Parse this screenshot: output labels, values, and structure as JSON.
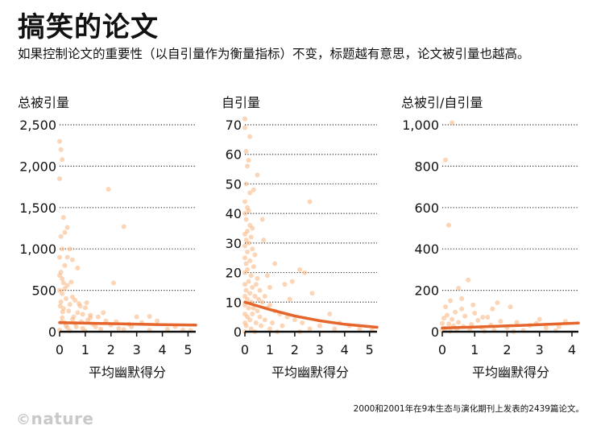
{
  "header": {
    "title": "搞笑的论文",
    "subtitle": "如果控制论文的重要性（以自引量作为衡量指标）不变，标题越有意思，论文被引量也越高。"
  },
  "footer": {
    "note": "2000和2001年在9本生态与演化期刊上发表的2439篇论文。",
    "logo_symbol": "©",
    "logo_text": "nature"
  },
  "colors": {
    "trend": "#e4662c",
    "points": "#f7b27a",
    "axis": "#111111",
    "grid": "#333333"
  },
  "chart_data": [
    {
      "type": "scatter",
      "title": "总被引量",
      "xlabel": "平均幽默得分",
      "xlim": [
        0,
        5.3
      ],
      "ylim": [
        0,
        2500
      ],
      "xticks": [
        0,
        1,
        2,
        3,
        4,
        5
      ],
      "yticks": [
        0,
        500,
        1000,
        1500,
        2000,
        2500
      ],
      "ytick_labels": [
        "0",
        "500",
        "1,000",
        "1,500",
        "2,000",
        "2,500"
      ],
      "trend": [
        [
          0,
          110
        ],
        [
          1,
          103
        ],
        [
          2,
          97
        ],
        [
          3,
          91
        ],
        [
          4,
          86
        ],
        [
          5.3,
          80
        ]
      ],
      "points": [
        [
          0,
          2300
        ],
        [
          0.05,
          2200
        ],
        [
          0.1,
          2080
        ],
        [
          0,
          1850
        ],
        [
          0.15,
          1380
        ],
        [
          0.3,
          1260
        ],
        [
          0.05,
          1150
        ],
        [
          0.2,
          1200
        ],
        [
          0.4,
          1000
        ],
        [
          0.1,
          1000
        ],
        [
          0,
          900
        ],
        [
          0.5,
          870
        ],
        [
          0.7,
          770
        ],
        [
          0.05,
          720
        ],
        [
          0,
          680
        ],
        [
          0.1,
          640
        ],
        [
          0.15,
          590
        ],
        [
          0.3,
          560
        ],
        [
          0.45,
          600
        ],
        [
          0.2,
          520
        ],
        [
          0,
          500
        ],
        [
          0.1,
          460
        ],
        [
          0.5,
          420
        ],
        [
          0.25,
          400
        ],
        [
          0.6,
          380
        ],
        [
          0.05,
          360
        ],
        [
          0.4,
          330
        ],
        [
          0.8,
          310
        ],
        [
          1.0,
          290
        ],
        [
          0.15,
          280
        ],
        [
          0.35,
          250
        ],
        [
          0.7,
          230
        ],
        [
          0.9,
          210
        ],
        [
          1.2,
          200
        ],
        [
          1.5,
          180
        ],
        [
          0.1,
          170
        ],
        [
          0.5,
          150
        ],
        [
          1.1,
          140
        ],
        [
          1.8,
          130
        ],
        [
          2.2,
          120
        ],
        [
          0.2,
          110
        ],
        [
          0.6,
          100
        ],
        [
          1.3,
          90
        ],
        [
          2.0,
          80
        ],
        [
          2.8,
          60
        ],
        [
          0.3,
          50
        ],
        [
          0.9,
          40
        ],
        [
          1.6,
          30
        ],
        [
          2.5,
          25
        ],
        [
          3.5,
          20
        ],
        [
          0,
          20
        ],
        [
          0.4,
          10
        ],
        [
          1.0,
          8
        ],
        [
          4.2,
          30
        ],
        [
          4.8,
          20
        ],
        [
          5.1,
          15
        ],
        [
          3.8,
          130
        ],
        [
          3.2,
          110
        ],
        [
          2.7,
          90
        ],
        [
          1.9,
          1720
        ],
        [
          2.5,
          1270
        ],
        [
          2.1,
          590
        ],
        [
          1.7,
          230
        ],
        [
          1.2,
          170
        ],
        [
          0.75,
          340
        ],
        [
          0.55,
          180
        ],
        [
          0.25,
          70
        ],
        [
          0.08,
          120
        ],
        [
          0.12,
          240
        ],
        [
          0.02,
          310
        ],
        [
          0.3,
          900
        ],
        [
          3.0,
          180
        ],
        [
          3.5,
          185
        ],
        [
          4.5,
          60
        ],
        [
          1.4,
          60
        ],
        [
          2.3,
          40
        ],
        [
          0.65,
          60
        ],
        [
          0.85,
          120
        ],
        [
          1.05,
          350
        ],
        [
          0.2,
          800
        ]
      ]
    },
    {
      "type": "scatter",
      "title": "自引量",
      "xlabel": "平均幽默得分",
      "xlim": [
        0,
        5.3
      ],
      "ylim": [
        0,
        70
      ],
      "xticks": [
        0,
        1,
        2,
        3,
        4,
        5
      ],
      "yticks": [
        0,
        10,
        20,
        30,
        40,
        50,
        60,
        70
      ],
      "ytick_labels": [
        "0",
        "10",
        "20",
        "30",
        "40",
        "50",
        "60",
        "70"
      ],
      "trend": [
        [
          0,
          10
        ],
        [
          1,
          7.5
        ],
        [
          2,
          5.3
        ],
        [
          3,
          3.7
        ],
        [
          4,
          2.5
        ],
        [
          5.3,
          1.5
        ]
      ],
      "points": [
        [
          0,
          69
        ],
        [
          0.1,
          56
        ],
        [
          0.05,
          50
        ],
        [
          0.2,
          47
        ],
        [
          0,
          44
        ],
        [
          0.1,
          42
        ],
        [
          0.15,
          41
        ],
        [
          0,
          40
        ],
        [
          0.05,
          38
        ],
        [
          0.2,
          36
        ],
        [
          0.3,
          35
        ],
        [
          0.1,
          34
        ],
        [
          0,
          33
        ],
        [
          0.25,
          32
        ],
        [
          0.05,
          31
        ],
        [
          0.15,
          30
        ],
        [
          0,
          29
        ],
        [
          0.3,
          28
        ],
        [
          0.1,
          27
        ],
        [
          0.4,
          26
        ],
        [
          0,
          25
        ],
        [
          0.2,
          24
        ],
        [
          0.05,
          23
        ],
        [
          0.35,
          22
        ],
        [
          0.1,
          21
        ],
        [
          0,
          20
        ],
        [
          0.25,
          19
        ],
        [
          0.5,
          18
        ],
        [
          0.15,
          17
        ],
        [
          0,
          16
        ],
        [
          0.45,
          16
        ],
        [
          0.3,
          15
        ],
        [
          0.05,
          14
        ],
        [
          0.6,
          14
        ],
        [
          0.2,
          13
        ],
        [
          0,
          12
        ],
        [
          0.4,
          12
        ],
        [
          0.8,
          12
        ],
        [
          0.1,
          11
        ],
        [
          0.55,
          11
        ],
        [
          0.25,
          10
        ],
        [
          0.7,
          10
        ],
        [
          0,
          9
        ],
        [
          1.0,
          9
        ],
        [
          0.35,
          8
        ],
        [
          0.15,
          8
        ],
        [
          0.9,
          8
        ],
        [
          0.5,
          7
        ],
        [
          1.2,
          7
        ],
        [
          0,
          6
        ],
        [
          0.3,
          6
        ],
        [
          1.4,
          6
        ],
        [
          0.6,
          5
        ],
        [
          0.1,
          5
        ],
        [
          1.7,
          5
        ],
        [
          0.2,
          4
        ],
        [
          0.8,
          4
        ],
        [
          2.0,
          4
        ],
        [
          0,
          3
        ],
        [
          0.45,
          3
        ],
        [
          1.1,
          3
        ],
        [
          2.3,
          3
        ],
        [
          0.05,
          2
        ],
        [
          0.65,
          2
        ],
        [
          1.5,
          2
        ],
        [
          3.0,
          2
        ],
        [
          0.25,
          1
        ],
        [
          1.0,
          1
        ],
        [
          2.6,
          1
        ],
        [
          3.6,
          1
        ],
        [
          0,
          0
        ],
        [
          0.4,
          0
        ],
        [
          1.3,
          0
        ],
        [
          2.2,
          0
        ],
        [
          0.5,
          53
        ],
        [
          0.35,
          48
        ],
        [
          0.7,
          38
        ],
        [
          1.2,
          23
        ],
        [
          1.6,
          16
        ],
        [
          2.2,
          21
        ],
        [
          2.6,
          44
        ],
        [
          2.7,
          13
        ],
        [
          3.4,
          6
        ],
        [
          3.8,
          3
        ],
        [
          4.2,
          2
        ],
        [
          4.6,
          1
        ],
        [
          5.1,
          0.5
        ],
        [
          0.9,
          19
        ],
        [
          1.8,
          11
        ],
        [
          0.75,
          31
        ],
        [
          0.15,
          58
        ],
        [
          0.2,
          66
        ],
        [
          0.05,
          61
        ],
        [
          0,
          72
        ],
        [
          1.9,
          17
        ],
        [
          2.4,
          20
        ],
        [
          1.0,
          15
        ]
      ]
    },
    {
      "type": "scatter",
      "title": "总被引/自引量",
      "xlabel": "平均幽默得分",
      "xlim": [
        0,
        4.2
      ],
      "ylim": [
        0,
        1000
      ],
      "xticks": [
        0,
        1,
        2,
        3,
        4
      ],
      "yticks": [
        0,
        200,
        400,
        600,
        800,
        1000
      ],
      "ytick_labels": [
        "0",
        "200",
        "400",
        "600",
        "800",
        "1,000"
      ],
      "trend": [
        [
          0,
          18
        ],
        [
          1,
          22
        ],
        [
          2,
          28
        ],
        [
          3,
          34
        ],
        [
          4.2,
          42
        ]
      ],
      "points": [
        [
          0.3,
          1010
        ],
        [
          0.1,
          830
        ],
        [
          0.2,
          515
        ],
        [
          0.8,
          250
        ],
        [
          0.5,
          210
        ],
        [
          0.25,
          150
        ],
        [
          0.1,
          120
        ],
        [
          0.6,
          110
        ],
        [
          0.4,
          95
        ],
        [
          1.0,
          90
        ],
        [
          0.15,
          80
        ],
        [
          0.7,
          75
        ],
        [
          1.4,
          70
        ],
        [
          0.05,
          65
        ],
        [
          0.3,
          60
        ],
        [
          1.1,
          55
        ],
        [
          1.8,
          50
        ],
        [
          0.5,
          45
        ],
        [
          2.3,
          45
        ],
        [
          0,
          40
        ],
        [
          0.2,
          38
        ],
        [
          0.9,
          35
        ],
        [
          1.5,
          32
        ],
        [
          2.7,
          30
        ],
        [
          0.35,
          28
        ],
        [
          0.65,
          25
        ],
        [
          1.2,
          22
        ],
        [
          2.0,
          20
        ],
        [
          3.2,
          18
        ],
        [
          0.1,
          15
        ],
        [
          0.45,
          12
        ],
        [
          0.85,
          10
        ],
        [
          1.6,
          8
        ],
        [
          2.5,
          6
        ],
        [
          3.5,
          5
        ],
        [
          0,
          5
        ],
        [
          0.25,
          3
        ],
        [
          1.3,
          2
        ],
        [
          2.2,
          1
        ],
        [
          3.0,
          60
        ],
        [
          3.8,
          50
        ],
        [
          1.7,
          140
        ],
        [
          2.1,
          120
        ],
        [
          1.55,
          110
        ],
        [
          0.95,
          130
        ],
        [
          0.6,
          160
        ],
        [
          1.25,
          70
        ],
        [
          2.9,
          40
        ],
        [
          3.6,
          25
        ]
      ]
    }
  ]
}
